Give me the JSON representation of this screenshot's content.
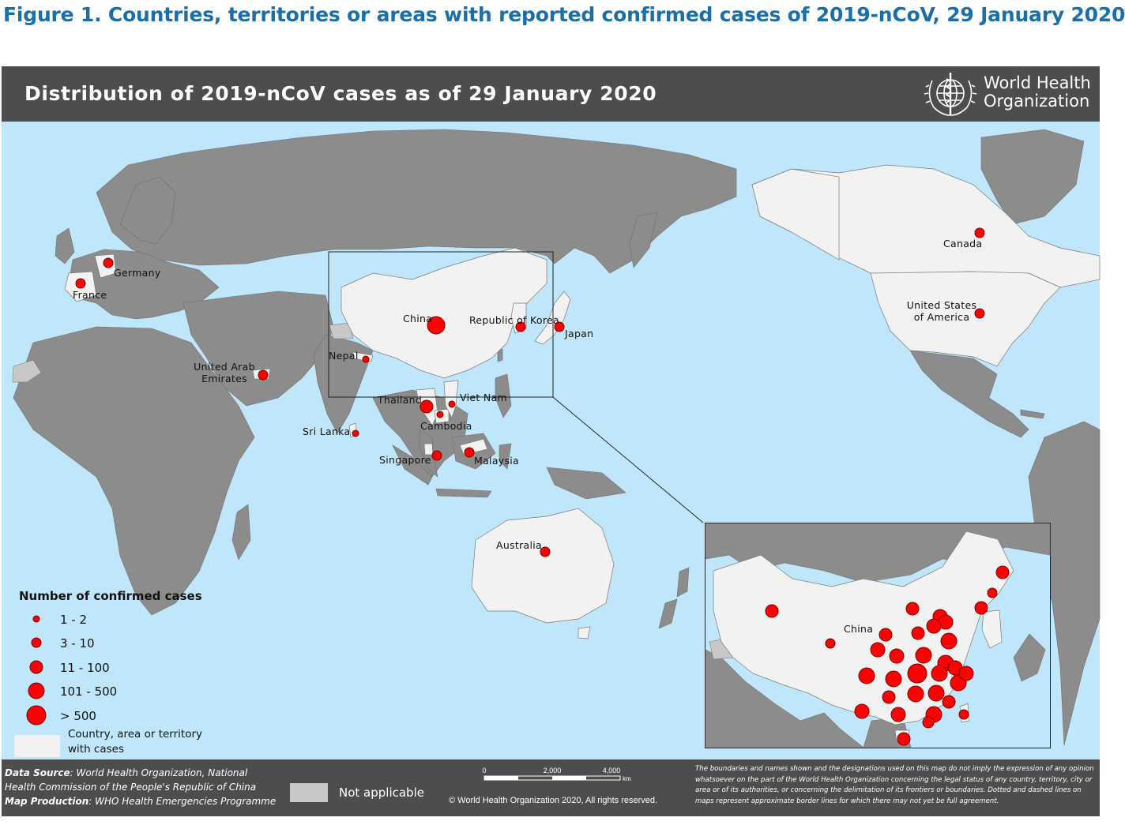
{
  "figure_title": "Figure 1. Countries, territories or areas with reported confirmed cases of 2019-nCoV, 29 January 2020",
  "map_title": "Distribution of 2019-nCoV cases as of 29 January 2020",
  "organization": {
    "line1": "World Health",
    "line2": "Organization",
    "logo_icon": "who-emblem-icon"
  },
  "colors": {
    "ocean": "#bfe6fb",
    "land_no_cases": "#8c8c8c",
    "land_with_cases": "#f2f2f2",
    "not_applicable": "#c8c8c8",
    "case_marker": "#ff0000",
    "header": "#4d4d4d"
  },
  "countries": [
    {
      "name": "China",
      "label": "China",
      "cases_range": "> 500"
    },
    {
      "name": "Republic of Korea",
      "label": "Republic of Korea",
      "cases_range": "3 - 10"
    },
    {
      "name": "Japan",
      "label": "Japan",
      "cases_range": "3 - 10"
    },
    {
      "name": "Nepal",
      "label": "Nepal",
      "cases_range": "1 - 2"
    },
    {
      "name": "Thailand",
      "label": "Thailand",
      "cases_range": "11 - 100"
    },
    {
      "name": "Viet Nam",
      "label": "Viet Nam",
      "cases_range": "1 - 2"
    },
    {
      "name": "Cambodia",
      "label": "Cambodia",
      "cases_range": "1 - 2"
    },
    {
      "name": "Sri Lanka",
      "label": "Sri Lanka",
      "cases_range": "1 - 2"
    },
    {
      "name": "Singapore",
      "label": "Singapore",
      "cases_range": "3 - 10"
    },
    {
      "name": "Malaysia",
      "label": "Malaysia",
      "cases_range": "3 - 10"
    },
    {
      "name": "Australia",
      "label": "Australia",
      "cases_range": "3 - 10"
    },
    {
      "name": "United Arab Emirates",
      "label": "United Arab Emirates",
      "cases_range": "3 - 10"
    },
    {
      "name": "Germany",
      "label": "Germany",
      "cases_range": "3 - 10"
    },
    {
      "name": "France",
      "label": "France",
      "cases_range": "3 - 10"
    },
    {
      "name": "Canada",
      "label": "Canada",
      "cases_range": "1 - 2"
    },
    {
      "name": "United States of America",
      "label": "United States of America",
      "cases_range": "3 - 10"
    }
  ],
  "inset": {
    "label": "China"
  },
  "legend": {
    "title": "Number of confirmed cases",
    "classes": [
      "1 - 2",
      "3 - 10",
      "11 - 100",
      "101 - 500",
      "> 500"
    ],
    "swatch_label_line1": "Country, area or territory",
    "swatch_label_line2": "with cases",
    "not_applicable": "Not applicable"
  },
  "footer": {
    "source_label": "Data Source",
    "source_text_line1": ": World Health Organization, National",
    "source_text_line2": "Health Commission of the People's Republic of China",
    "production_label": "Map Production",
    "production_text": ": WHO Health Emergencies Programme",
    "scale_ticks": [
      "0",
      "2,000",
      "4,000"
    ],
    "scale_unit": "km",
    "copyright": "© World Health Organization 2020, All rights reserved.",
    "disclaimer": "The boundaries and names shown and the designations used on this map do not imply the expression of any opinion whatsoever on the part of the World Health Organization concerning the legal status of any country, territory, city or area or of its authorities, or concerning the delimitation of its frontiers or boundaries. Dotted and dashed lines on maps represent approximate border lines for which there may not yet be full agreement."
  }
}
